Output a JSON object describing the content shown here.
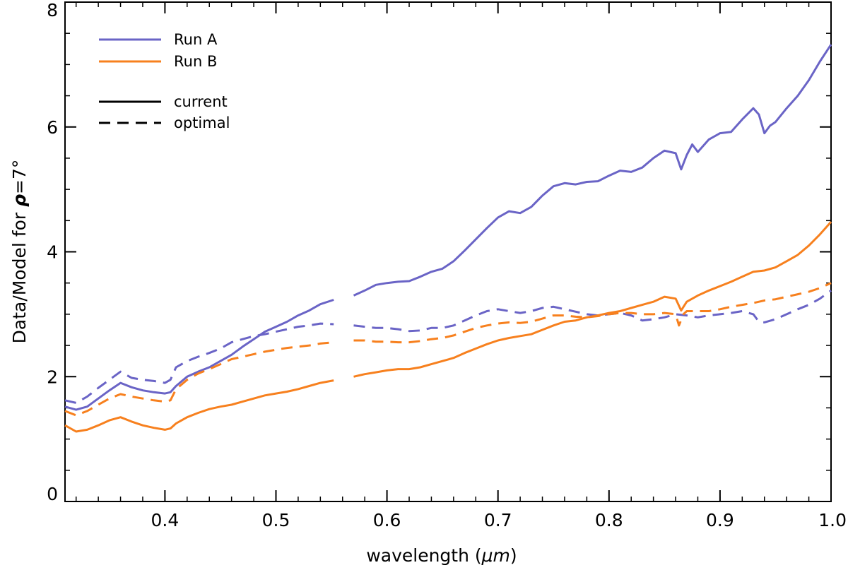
{
  "chart_data": {
    "type": "line",
    "title": "",
    "xlabel_text": "wavelength (",
    "xlabel_unit": "μm",
    "xlabel_close": ")",
    "ylabel_text": "Data/Model for ",
    "ylabel_symbol": "ρ",
    "ylabel_value": "=7°",
    "xlim": [
      0.31,
      1.0
    ],
    "ylim": [
      0,
      8
    ],
    "xticks": [
      0.4,
      0.5,
      0.6,
      0.7,
      0.8,
      0.9,
      1.0
    ],
    "xtick_labels": [
      "0.4",
      "0.5",
      "0.6",
      "0.7",
      "0.8",
      "0.9",
      "1.0"
    ],
    "yticks": [
      0,
      2,
      4,
      6,
      8
    ],
    "ytick_labels": [
      "0",
      "2",
      "4",
      "6",
      "8"
    ],
    "gap": [
      0.555,
      0.568
    ],
    "grid": false,
    "legend_position": "top-left",
    "legend": {
      "colors": [
        {
          "name": "Run A",
          "color": "#6a64c6"
        },
        {
          "name": "Run B",
          "color": "#f7801e"
        }
      ],
      "styles": [
        {
          "name": "current",
          "dash": "solid"
        },
        {
          "name": "optimal",
          "dash": "dashed"
        }
      ]
    },
    "series": [
      {
        "name": "Run A current",
        "run": "Run A",
        "style": "current",
        "color": "#6a64c6",
        "dash": "solid",
        "points": [
          [
            0.31,
            1.52
          ],
          [
            0.32,
            1.47
          ],
          [
            0.33,
            1.52
          ],
          [
            0.34,
            1.65
          ],
          [
            0.35,
            1.78
          ],
          [
            0.36,
            1.9
          ],
          [
            0.37,
            1.83
          ],
          [
            0.38,
            1.78
          ],
          [
            0.39,
            1.75
          ],
          [
            0.4,
            1.73
          ],
          [
            0.405,
            1.75
          ],
          [
            0.41,
            1.85
          ],
          [
            0.42,
            2.0
          ],
          [
            0.43,
            2.08
          ],
          [
            0.44,
            2.15
          ],
          [
            0.45,
            2.25
          ],
          [
            0.46,
            2.35
          ],
          [
            0.47,
            2.48
          ],
          [
            0.48,
            2.6
          ],
          [
            0.49,
            2.72
          ],
          [
            0.5,
            2.8
          ],
          [
            0.51,
            2.88
          ],
          [
            0.52,
            2.98
          ],
          [
            0.53,
            3.06
          ],
          [
            0.54,
            3.16
          ],
          [
            0.552,
            3.23
          ],
          [
            0.57,
            3.3
          ],
          [
            0.58,
            3.38
          ],
          [
            0.59,
            3.47
          ],
          [
            0.6,
            3.5
          ],
          [
            0.61,
            3.52
          ],
          [
            0.62,
            3.53
          ],
          [
            0.63,
            3.6
          ],
          [
            0.64,
            3.68
          ],
          [
            0.65,
            3.73
          ],
          [
            0.66,
            3.85
          ],
          [
            0.67,
            4.02
          ],
          [
            0.68,
            4.2
          ],
          [
            0.69,
            4.38
          ],
          [
            0.7,
            4.55
          ],
          [
            0.71,
            4.65
          ],
          [
            0.72,
            4.62
          ],
          [
            0.73,
            4.72
          ],
          [
            0.74,
            4.9
          ],
          [
            0.75,
            5.05
          ],
          [
            0.76,
            5.1
          ],
          [
            0.77,
            5.08
          ],
          [
            0.78,
            5.12
          ],
          [
            0.79,
            5.13
          ],
          [
            0.8,
            5.22
          ],
          [
            0.81,
            5.3
          ],
          [
            0.82,
            5.28
          ],
          [
            0.83,
            5.35
          ],
          [
            0.84,
            5.5
          ],
          [
            0.85,
            5.62
          ],
          [
            0.86,
            5.58
          ],
          [
            0.865,
            5.32
          ],
          [
            0.87,
            5.55
          ],
          [
            0.875,
            5.72
          ],
          [
            0.88,
            5.6
          ],
          [
            0.89,
            5.8
          ],
          [
            0.9,
            5.9
          ],
          [
            0.91,
            5.92
          ],
          [
            0.92,
            6.12
          ],
          [
            0.93,
            6.3
          ],
          [
            0.935,
            6.2
          ],
          [
            0.94,
            5.9
          ],
          [
            0.945,
            6.02
          ],
          [
            0.95,
            6.08
          ],
          [
            0.96,
            6.3
          ],
          [
            0.97,
            6.5
          ],
          [
            0.98,
            6.75
          ],
          [
            0.99,
            7.05
          ],
          [
            1.0,
            7.32
          ]
        ]
      },
      {
        "name": "Run A optimal",
        "run": "Run A",
        "style": "optimal",
        "color": "#6a64c6",
        "dash": "dashed",
        "points": [
          [
            0.31,
            1.62
          ],
          [
            0.32,
            1.58
          ],
          [
            0.33,
            1.68
          ],
          [
            0.34,
            1.82
          ],
          [
            0.35,
            1.95
          ],
          [
            0.36,
            2.08
          ],
          [
            0.37,
            1.98
          ],
          [
            0.38,
            1.95
          ],
          [
            0.39,
            1.93
          ],
          [
            0.4,
            1.9
          ],
          [
            0.405,
            1.95
          ],
          [
            0.41,
            2.15
          ],
          [
            0.42,
            2.25
          ],
          [
            0.43,
            2.32
          ],
          [
            0.44,
            2.38
          ],
          [
            0.45,
            2.45
          ],
          [
            0.46,
            2.55
          ],
          [
            0.47,
            2.6
          ],
          [
            0.48,
            2.65
          ],
          [
            0.49,
            2.68
          ],
          [
            0.5,
            2.72
          ],
          [
            0.51,
            2.76
          ],
          [
            0.52,
            2.8
          ],
          [
            0.53,
            2.82
          ],
          [
            0.54,
            2.85
          ],
          [
            0.552,
            2.84
          ],
          [
            0.57,
            2.82
          ],
          [
            0.58,
            2.8
          ],
          [
            0.59,
            2.78
          ],
          [
            0.6,
            2.78
          ],
          [
            0.61,
            2.76
          ],
          [
            0.62,
            2.73
          ],
          [
            0.63,
            2.74
          ],
          [
            0.64,
            2.78
          ],
          [
            0.65,
            2.78
          ],
          [
            0.66,
            2.82
          ],
          [
            0.67,
            2.9
          ],
          [
            0.68,
            2.98
          ],
          [
            0.69,
            3.05
          ],
          [
            0.7,
            3.08
          ],
          [
            0.71,
            3.05
          ],
          [
            0.72,
            3.02
          ],
          [
            0.73,
            3.05
          ],
          [
            0.74,
            3.1
          ],
          [
            0.75,
            3.12
          ],
          [
            0.76,
            3.08
          ],
          [
            0.77,
            3.04
          ],
          [
            0.78,
            3.0
          ],
          [
            0.79,
            2.98
          ],
          [
            0.8,
            3.0
          ],
          [
            0.81,
            3.02
          ],
          [
            0.82,
            2.98
          ],
          [
            0.83,
            2.9
          ],
          [
            0.84,
            2.92
          ],
          [
            0.85,
            2.95
          ],
          [
            0.86,
            3.0
          ],
          [
            0.87,
            2.98
          ],
          [
            0.88,
            2.95
          ],
          [
            0.89,
            2.98
          ],
          [
            0.9,
            3.0
          ],
          [
            0.91,
            3.02
          ],
          [
            0.92,
            3.05
          ],
          [
            0.93,
            3.0
          ],
          [
            0.935,
            2.88
          ],
          [
            0.94,
            2.87
          ],
          [
            0.95,
            2.92
          ],
          [
            0.96,
            3.0
          ],
          [
            0.97,
            3.08
          ],
          [
            0.98,
            3.15
          ],
          [
            0.99,
            3.25
          ],
          [
            1.0,
            3.38
          ]
        ]
      },
      {
        "name": "Run B current",
        "run": "Run B",
        "style": "current",
        "color": "#f7801e",
        "dash": "solid",
        "points": [
          [
            0.31,
            1.22
          ],
          [
            0.32,
            1.12
          ],
          [
            0.33,
            1.15
          ],
          [
            0.34,
            1.22
          ],
          [
            0.35,
            1.3
          ],
          [
            0.36,
            1.35
          ],
          [
            0.37,
            1.28
          ],
          [
            0.38,
            1.22
          ],
          [
            0.39,
            1.18
          ],
          [
            0.4,
            1.15
          ],
          [
            0.405,
            1.17
          ],
          [
            0.41,
            1.25
          ],
          [
            0.42,
            1.35
          ],
          [
            0.43,
            1.42
          ],
          [
            0.44,
            1.48
          ],
          [
            0.45,
            1.52
          ],
          [
            0.46,
            1.55
          ],
          [
            0.47,
            1.6
          ],
          [
            0.48,
            1.65
          ],
          [
            0.49,
            1.7
          ],
          [
            0.5,
            1.73
          ],
          [
            0.51,
            1.76
          ],
          [
            0.52,
            1.8
          ],
          [
            0.53,
            1.85
          ],
          [
            0.54,
            1.9
          ],
          [
            0.552,
            1.94
          ],
          [
            0.57,
            2.0
          ],
          [
            0.58,
            2.04
          ],
          [
            0.59,
            2.07
          ],
          [
            0.6,
            2.1
          ],
          [
            0.61,
            2.12
          ],
          [
            0.62,
            2.12
          ],
          [
            0.63,
            2.15
          ],
          [
            0.64,
            2.2
          ],
          [
            0.65,
            2.25
          ],
          [
            0.66,
            2.3
          ],
          [
            0.67,
            2.38
          ],
          [
            0.68,
            2.45
          ],
          [
            0.69,
            2.52
          ],
          [
            0.7,
            2.58
          ],
          [
            0.71,
            2.62
          ],
          [
            0.72,
            2.65
          ],
          [
            0.73,
            2.68
          ],
          [
            0.74,
            2.75
          ],
          [
            0.75,
            2.82
          ],
          [
            0.76,
            2.88
          ],
          [
            0.77,
            2.9
          ],
          [
            0.78,
            2.95
          ],
          [
            0.79,
            2.98
          ],
          [
            0.8,
            3.02
          ],
          [
            0.81,
            3.05
          ],
          [
            0.82,
            3.1
          ],
          [
            0.83,
            3.15
          ],
          [
            0.84,
            3.2
          ],
          [
            0.85,
            3.28
          ],
          [
            0.86,
            3.25
          ],
          [
            0.865,
            3.06
          ],
          [
            0.87,
            3.2
          ],
          [
            0.88,
            3.3
          ],
          [
            0.89,
            3.38
          ],
          [
            0.9,
            3.45
          ],
          [
            0.91,
            3.52
          ],
          [
            0.92,
            3.6
          ],
          [
            0.93,
            3.68
          ],
          [
            0.94,
            3.7
          ],
          [
            0.95,
            3.75
          ],
          [
            0.96,
            3.85
          ],
          [
            0.97,
            3.95
          ],
          [
            0.98,
            4.1
          ],
          [
            0.99,
            4.28
          ],
          [
            1.0,
            4.48
          ]
        ]
      },
      {
        "name": "Run B optimal",
        "run": "Run B",
        "style": "optimal",
        "color": "#f7801e",
        "dash": "dashed",
        "points": [
          [
            0.31,
            1.45
          ],
          [
            0.32,
            1.38
          ],
          [
            0.33,
            1.45
          ],
          [
            0.34,
            1.55
          ],
          [
            0.35,
            1.65
          ],
          [
            0.36,
            1.72
          ],
          [
            0.37,
            1.68
          ],
          [
            0.38,
            1.65
          ],
          [
            0.39,
            1.62
          ],
          [
            0.4,
            1.6
          ],
          [
            0.405,
            1.62
          ],
          [
            0.41,
            1.8
          ],
          [
            0.42,
            1.95
          ],
          [
            0.43,
            2.05
          ],
          [
            0.44,
            2.12
          ],
          [
            0.45,
            2.2
          ],
          [
            0.46,
            2.28
          ],
          [
            0.47,
            2.32
          ],
          [
            0.48,
            2.36
          ],
          [
            0.49,
            2.4
          ],
          [
            0.5,
            2.43
          ],
          [
            0.51,
            2.46
          ],
          [
            0.52,
            2.48
          ],
          [
            0.53,
            2.5
          ],
          [
            0.54,
            2.53
          ],
          [
            0.552,
            2.55
          ],
          [
            0.57,
            2.58
          ],
          [
            0.58,
            2.58
          ],
          [
            0.59,
            2.56
          ],
          [
            0.6,
            2.56
          ],
          [
            0.61,
            2.55
          ],
          [
            0.62,
            2.55
          ],
          [
            0.63,
            2.57
          ],
          [
            0.64,
            2.6
          ],
          [
            0.65,
            2.62
          ],
          [
            0.66,
            2.66
          ],
          [
            0.67,
            2.72
          ],
          [
            0.68,
            2.78
          ],
          [
            0.69,
            2.82
          ],
          [
            0.7,
            2.85
          ],
          [
            0.71,
            2.87
          ],
          [
            0.72,
            2.86
          ],
          [
            0.73,
            2.88
          ],
          [
            0.74,
            2.93
          ],
          [
            0.75,
            2.98
          ],
          [
            0.76,
            2.98
          ],
          [
            0.77,
            2.96
          ],
          [
            0.78,
            2.95
          ],
          [
            0.79,
            2.97
          ],
          [
            0.8,
            3.0
          ],
          [
            0.81,
            3.02
          ],
          [
            0.82,
            3.02
          ],
          [
            0.83,
            3.0
          ],
          [
            0.84,
            3.0
          ],
          [
            0.85,
            3.02
          ],
          [
            0.86,
            3.0
          ],
          [
            0.863,
            2.82
          ],
          [
            0.867,
            3.0
          ],
          [
            0.87,
            3.05
          ],
          [
            0.88,
            3.05
          ],
          [
            0.89,
            3.05
          ],
          [
            0.9,
            3.08
          ],
          [
            0.91,
            3.12
          ],
          [
            0.92,
            3.15
          ],
          [
            0.93,
            3.18
          ],
          [
            0.94,
            3.22
          ],
          [
            0.95,
            3.24
          ],
          [
            0.96,
            3.28
          ],
          [
            0.97,
            3.32
          ],
          [
            0.98,
            3.36
          ],
          [
            0.99,
            3.42
          ],
          [
            1.0,
            3.5
          ]
        ]
      }
    ]
  }
}
